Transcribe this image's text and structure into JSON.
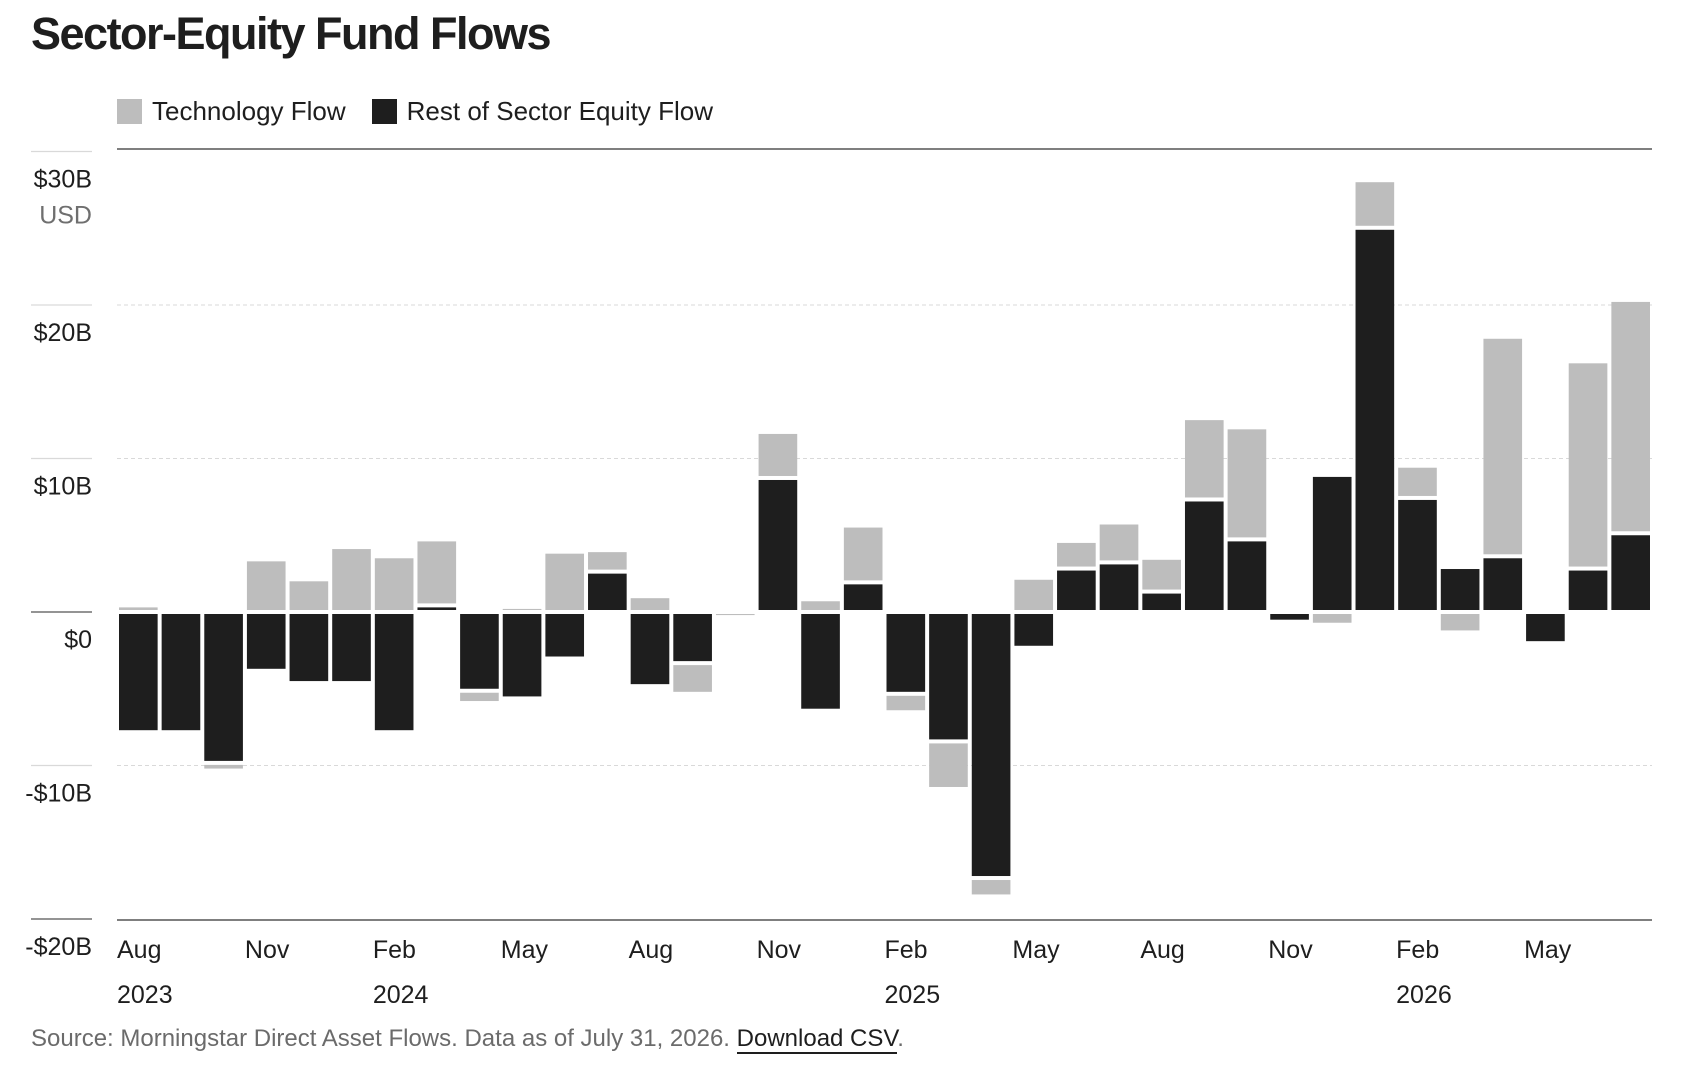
{
  "title": "Sector-Equity Fund Flows",
  "legend": {
    "tech_label": "Technology Flow",
    "rest_label": "Rest of Sector Equity Flow"
  },
  "colors": {
    "technology": "#bdbdbd",
    "rest": "#1e1e1e",
    "gridline": "#d9d9d9",
    "axis": "#555555"
  },
  "source": {
    "text": "Source: Morningstar Direct Asset Flows. Data as of July 31, 2026.",
    "link_label": "Download CSV",
    "trailing": "."
  },
  "chart_data": {
    "type": "bar",
    "stacked": true,
    "title": "Sector-Equity Fund Flows",
    "y_unit_label": "USD",
    "ylim": [
      -20,
      30
    ],
    "y_ticks": [
      {
        "value": 30,
        "label": "$30B"
      },
      {
        "value": 20,
        "label": "$20B"
      },
      {
        "value": 10,
        "label": "$10B"
      },
      {
        "value": 0,
        "label": "$0"
      },
      {
        "value": -10,
        "label": "-$10B"
      },
      {
        "value": -20,
        "label": "-$20B"
      }
    ],
    "x": [
      "2023-08",
      "2023-09",
      "2023-10",
      "2023-11",
      "2023-12",
      "2024-01",
      "2024-02",
      "2024-03",
      "2024-04",
      "2024-05",
      "2024-06",
      "2024-07",
      "2024-08",
      "2024-09",
      "2024-10",
      "2024-11",
      "2024-12",
      "2025-01",
      "2025-02",
      "2025-03",
      "2025-04",
      "2025-05",
      "2025-06",
      "2025-07",
      "2025-08",
      "2025-09",
      "2025-10",
      "2025-11",
      "2025-12",
      "2026-01",
      "2026-02",
      "2026-03",
      "2026-04",
      "2026-05",
      "2026-06",
      "2026-07"
    ],
    "x_ticks": [
      {
        "index": 0,
        "month": "Aug",
        "year": "2023"
      },
      {
        "index": 3,
        "month": "Nov",
        "year": ""
      },
      {
        "index": 6,
        "month": "Feb",
        "year": "2024"
      },
      {
        "index": 9,
        "month": "May",
        "year": ""
      },
      {
        "index": 12,
        "month": "Aug",
        "year": ""
      },
      {
        "index": 15,
        "month": "Nov",
        "year": ""
      },
      {
        "index": 18,
        "month": "Feb",
        "year": "2025"
      },
      {
        "index": 21,
        "month": "May",
        "year": ""
      },
      {
        "index": 24,
        "month": "Aug",
        "year": ""
      },
      {
        "index": 27,
        "month": "Nov",
        "year": ""
      },
      {
        "index": 30,
        "month": "Feb",
        "year": "2026"
      },
      {
        "index": 33,
        "month": "May",
        "year": ""
      }
    ],
    "series": [
      {
        "name": "Technology Flow",
        "values": [
          0.3,
          0,
          -0.5,
          3.3,
          2.0,
          4.1,
          3.5,
          4.3,
          -0.8,
          0.2,
          3.8,
          1.4,
          0.9,
          -2.0,
          -0.2,
          3.0,
          0.7,
          3.7,
          -1.2,
          -3.1,
          -1.2,
          2.1,
          1.8,
          2.6,
          2.2,
          5.3,
          7.3,
          0,
          -0.7,
          3.1,
          2.1,
          -1.2,
          14.3,
          0,
          13.5,
          15.2
        ]
      },
      {
        "name": "Rest of Sector Equity Flow",
        "values": [
          -7.7,
          -7.7,
          -9.7,
          -3.7,
          -4.5,
          -4.5,
          -7.7,
          0.3,
          -5.0,
          -5.5,
          -2.9,
          2.5,
          -4.7,
          -3.2,
          0,
          8.6,
          -6.3,
          1.8,
          -5.2,
          -8.3,
          -17.2,
          -2.2,
          2.7,
          3.1,
          1.2,
          7.2,
          4.6,
          -0.5,
          8.8,
          24.9,
          7.3,
          2.8,
          3.5,
          -1.9,
          2.7,
          5.0
        ]
      }
    ]
  }
}
